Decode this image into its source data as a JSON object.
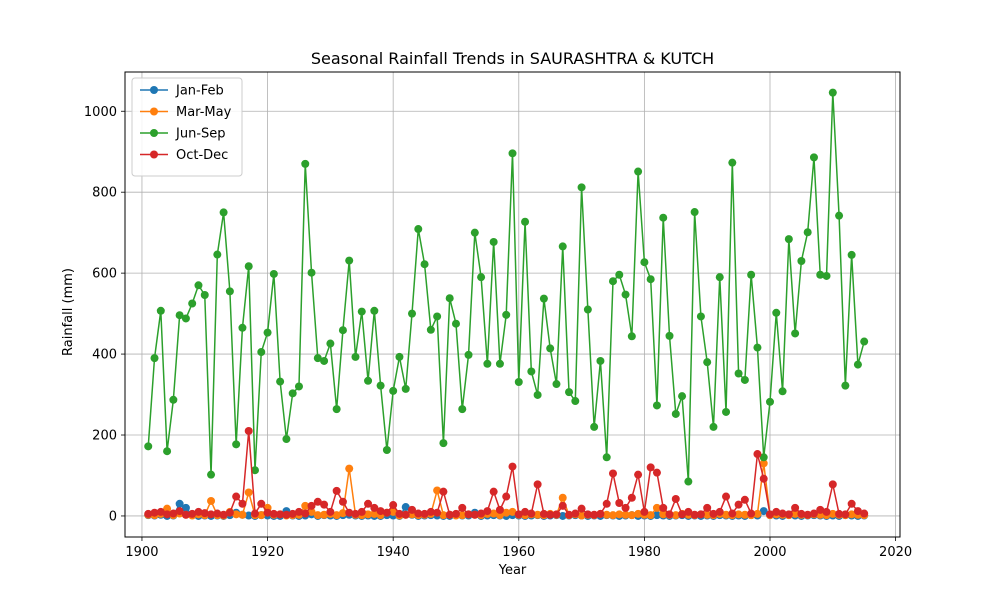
{
  "chart_data": {
    "type": "line",
    "title": "Seasonal Rainfall Trends in SAURASHTRA & KUTCH",
    "xlabel": "Year",
    "ylabel": "Rainfall (mm)",
    "xlim": [
      1897.3,
      2020.7
    ],
    "ylim": [
      -52,
      1097
    ],
    "xticks": [
      1900,
      1920,
      1940,
      1960,
      1980,
      2000,
      2020
    ],
    "yticks": [
      0,
      200,
      400,
      600,
      800,
      1000
    ],
    "grid": true,
    "legend_position": "top-left",
    "x": [
      1901,
      1902,
      1903,
      1904,
      1905,
      1906,
      1907,
      1908,
      1909,
      1910,
      1911,
      1912,
      1913,
      1914,
      1915,
      1916,
      1917,
      1918,
      1919,
      1920,
      1921,
      1922,
      1923,
      1924,
      1925,
      1926,
      1927,
      1928,
      1929,
      1930,
      1931,
      1932,
      1933,
      1934,
      1935,
      1936,
      1937,
      1938,
      1939,
      1940,
      1941,
      1942,
      1943,
      1944,
      1945,
      1946,
      1947,
      1948,
      1949,
      1950,
      1951,
      1952,
      1953,
      1954,
      1955,
      1956,
      1957,
      1958,
      1959,
      1960,
      1961,
      1962,
      1963,
      1964,
      1965,
      1966,
      1967,
      1968,
      1969,
      1970,
      1971,
      1972,
      1973,
      1974,
      1975,
      1976,
      1977,
      1978,
      1979,
      1980,
      1981,
      1982,
      1983,
      1984,
      1985,
      1986,
      1987,
      1988,
      1989,
      1990,
      1991,
      1992,
      1993,
      1994,
      1995,
      1996,
      1997,
      1998,
      1999,
      2000,
      2001,
      2002,
      2003,
      2004,
      2005,
      2006,
      2007,
      2008,
      2009,
      2010,
      2011,
      2012,
      2013,
      2014,
      2015
    ],
    "series": [
      {
        "name": "Jan-Feb",
        "color": "#1f77b4",
        "values": [
          2,
          1,
          3,
          0,
          1,
          30,
          20,
          2,
          0,
          1,
          0,
          1,
          0,
          2,
          8,
          3,
          1,
          0,
          2,
          1,
          0,
          0,
          12,
          1,
          0,
          1,
          4,
          0,
          2,
          1,
          0,
          2,
          3,
          1,
          0,
          1,
          0,
          0,
          2,
          1,
          0,
          22,
          3,
          0,
          1,
          2,
          1,
          0,
          0,
          2,
          1,
          1,
          8,
          0,
          1,
          2,
          1,
          0,
          2,
          1,
          0,
          1,
          2,
          0,
          1,
          2,
          0,
          1,
          2,
          1,
          0,
          1,
          0,
          2,
          1,
          0,
          1,
          2,
          0,
          1,
          0,
          2,
          1,
          0,
          1,
          2,
          0,
          1,
          0,
          1,
          0,
          2,
          1,
          0,
          1,
          0,
          2,
          1,
          12,
          2,
          1,
          0,
          2,
          1,
          0,
          1,
          2,
          1,
          0,
          1,
          0,
          2,
          1,
          0,
          1
        ]
      },
      {
        "name": "Mar-May",
        "color": "#ff7f0e",
        "values": [
          3,
          2,
          5,
          18,
          2,
          6,
          3,
          1,
          4,
          2,
          37,
          2,
          1,
          10,
          4,
          3,
          58,
          2,
          2,
          20,
          3,
          4,
          1,
          2,
          3,
          25,
          10,
          2,
          3,
          5,
          2,
          7,
          117,
          3,
          2,
          4,
          5,
          2,
          8,
          10,
          1,
          3,
          4,
          2,
          3,
          5,
          63,
          2,
          3,
          1,
          2,
          4,
          3,
          2,
          5,
          6,
          2,
          8,
          10,
          3,
          2,
          4,
          3,
          2,
          5,
          3,
          45,
          2,
          4,
          1,
          3,
          2,
          5,
          3,
          2,
          4,
          3,
          2,
          5,
          3,
          2,
          20,
          4,
          3,
          2,
          5,
          3,
          2,
          4,
          3,
          2,
          5,
          3,
          2,
          4,
          3,
          2,
          5,
          130,
          2,
          4,
          3,
          2,
          5,
          3,
          2,
          4,
          3,
          2,
          5,
          3,
          2,
          4,
          3,
          2
        ]
      },
      {
        "name": "Jun-Sep",
        "color": "#2ca02c",
        "values": [
          172,
          390,
          507,
          160,
          287,
          496,
          488,
          525,
          570,
          546,
          102,
          646,
          750,
          555,
          177,
          465,
          617,
          113,
          405,
          453,
          598,
          332,
          190,
          303,
          320,
          870,
          601,
          390,
          383,
          426,
          264,
          459,
          631,
          393,
          505,
          334,
          507,
          322,
          163,
          309,
          393,
          314,
          500,
          709,
          622,
          460,
          493,
          180,
          538,
          475,
          264,
          398,
          700,
          590,
          376,
          677,
          376,
          497,
          896,
          331,
          727,
          357,
          299,
          537,
          414,
          326,
          666,
          306,
          284,
          812,
          510,
          220,
          383,
          145,
          580,
          596,
          547,
          444,
          851,
          627,
          585,
          273,
          737,
          445,
          252,
          296,
          85,
          751,
          493,
          380,
          220,
          590,
          257,
          873,
          352,
          336,
          596,
          416,
          145,
          282,
          502,
          308,
          684,
          451,
          630,
          701,
          886,
          596,
          593,
          1046,
          742,
          322,
          645,
          374,
          431
        ]
      },
      {
        "name": "Oct-Dec",
        "color": "#d62728",
        "values": [
          5,
          8,
          10,
          4,
          6,
          12,
          3,
          5,
          10,
          7,
          4,
          6,
          3,
          8,
          48,
          30,
          210,
          6,
          30,
          8,
          5,
          4,
          3,
          5,
          10,
          6,
          25,
          35,
          28,
          10,
          62,
          35,
          8,
          5,
          10,
          30,
          20,
          12,
          8,
          27,
          5,
          3,
          15,
          6,
          5,
          10,
          8,
          60,
          3,
          5,
          20,
          4,
          3,
          6,
          12,
          60,
          15,
          48,
          122,
          4,
          10,
          6,
          78,
          5,
          3,
          4,
          25,
          3,
          6,
          18,
          4,
          3,
          5,
          30,
          105,
          32,
          20,
          45,
          102,
          10,
          120,
          107,
          20,
          4,
          42,
          4,
          10,
          3,
          4,
          20,
          5,
          10,
          48,
          6,
          28,
          40,
          6,
          153,
          92,
          4,
          10,
          6,
          4,
          20,
          5,
          3,
          6,
          15,
          10,
          78,
          5,
          4,
          30,
          12,
          6
        ]
      }
    ]
  }
}
